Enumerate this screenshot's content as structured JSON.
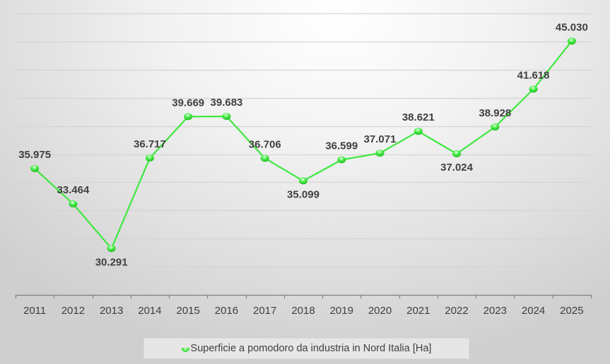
{
  "chart_data": {
    "type": "line",
    "title": "",
    "xlabel": "",
    "ylabel": "",
    "categories": [
      "2011",
      "2012",
      "2013",
      "2014",
      "2015",
      "2016",
      "2017",
      "2018",
      "2019",
      "2020",
      "2021",
      "2022",
      "2023",
      "2024",
      "2025"
    ],
    "series": [
      {
        "name": "Superficie a pomodoro da industria in Nord Italia [Ha]",
        "values": [
          35975,
          33464,
          30291,
          36717,
          39669,
          39683,
          36706,
          35099,
          36599,
          37071,
          38621,
          37024,
          38928,
          41618,
          45030
        ],
        "labels": [
          "35.975",
          "33.464",
          "30.291",
          "36.717",
          "39.669",
          "39.683",
          "36.706",
          "35.099",
          "36.599",
          "37.071",
          "38.621",
          "37.024",
          "38.928",
          "41.618",
          "45.030"
        ],
        "label_position": [
          "above",
          "above",
          "below",
          "above",
          "above",
          "above",
          "above",
          "below",
          "above",
          "above",
          "above",
          "below",
          "above",
          "above",
          "above"
        ],
        "color": "#3ee83e"
      }
    ],
    "ylim": [
      27000,
      47000
    ],
    "y_gridline_step": 2000,
    "y_axis_labels_visible": false,
    "grid": true,
    "legend_position": "bottom"
  },
  "legend": {
    "label": "Superficie a pomodoro da industria in Nord Italia [Ha]"
  },
  "colors": {
    "line": "#3ee83e",
    "gridline": "#d4d4d4",
    "axis": "#7f7f7f",
    "text": "#404040"
  }
}
